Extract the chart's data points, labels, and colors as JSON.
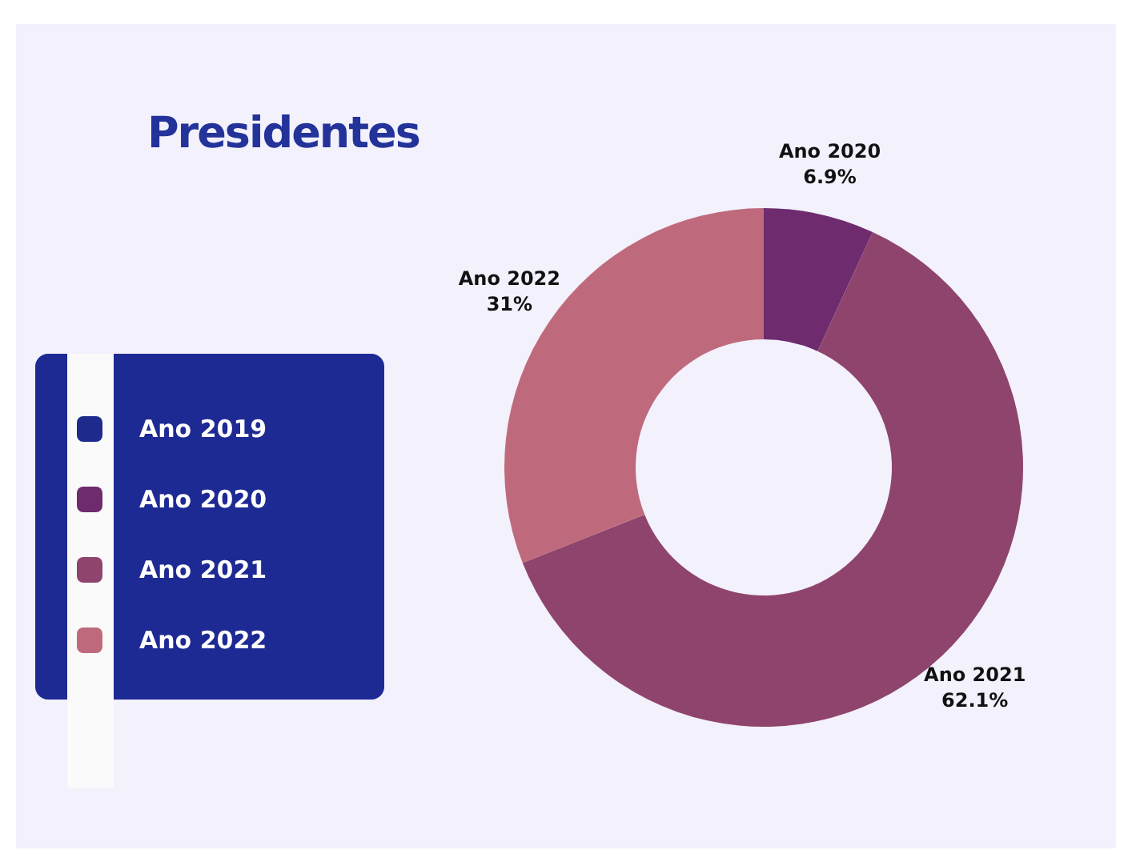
{
  "chart_data": {
    "type": "donut",
    "title": "Presidentes",
    "categories": [
      "Ano 2019",
      "Ano 2020",
      "Ano 2021",
      "Ano 2022"
    ],
    "values": [
      0,
      6.9,
      62.1,
      31
    ],
    "value_labels": [
      null,
      "6.9%",
      "62.1%",
      "31%"
    ],
    "colors": [
      "#1e2a8c",
      "#6e2b6e",
      "#8f446d",
      "#bf6a7c"
    ],
    "legend": "left"
  }
}
